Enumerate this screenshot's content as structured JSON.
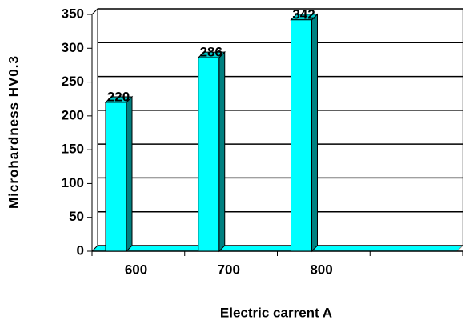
{
  "chart_data": {
    "type": "bar",
    "categories": [
      "600",
      "700",
      "800",
      null
    ],
    "values": [
      220,
      286,
      342,
      null
    ],
    "color": "#00ffff",
    "ylim": [
      0,
      350
    ],
    "yticks": [
      0,
      50,
      100,
      150,
      200,
      250,
      300,
      350
    ],
    "grid": true,
    "xlabel": "Electric carrent  A",
    "ylabel": "Microhardness  HV0.3"
  }
}
